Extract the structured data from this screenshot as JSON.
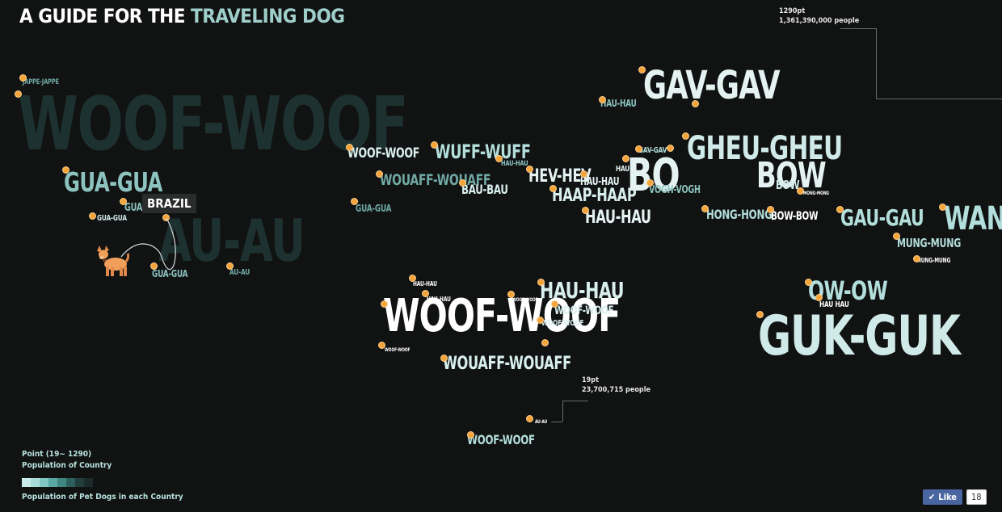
{
  "header": {
    "title_prefix": "A GUIDE FOR THE ",
    "title_accent": "TRAVELING DOG"
  },
  "colors": {
    "background": "#111212",
    "accent": "#9fcfcb",
    "dot": "#f3a53c"
  },
  "annotations": {
    "max_points": "1290pt",
    "max_population": "1,361,390,000 people",
    "min_points": "19pt",
    "min_population": "23,700,715 people"
  },
  "highlight": {
    "label": "BRAZIL"
  },
  "legend": {
    "points": "Point (19~ 1290)",
    "population": "Population of Country",
    "dogs": "Population of Pet Dogs in each Country",
    "scale_colors": [
      "#c9ecea",
      "#a9dcd8",
      "#7fc6c1",
      "#5aa8a3",
      "#3f8580",
      "#2d605c",
      "#213e3c",
      "#1a2b2a"
    ]
  },
  "facebook": {
    "like_label": "Like",
    "like_count": "18"
  },
  "words": [
    {
      "t": "WOOF-WOOF",
      "c": "#1d3230"
    },
    {
      "t": "AU-AU",
      "c": "#1d3230"
    },
    {
      "t": "JAPPE-JAPPE",
      "c": "#6fa8a4"
    },
    {
      "t": "GUA-GUA",
      "c": "#8cc3bf"
    },
    {
      "t": "GUA",
      "c": "#8cc3bf"
    },
    {
      "t": "GUA-GUA",
      "c": "#cfeae8"
    },
    {
      "t": "GUA-GUA",
      "c": "#6fa8a4"
    },
    {
      "t": "AU-AU",
      "c": "#6fa8a4"
    },
    {
      "t": "WOOF-WOOF",
      "c": "#d8efed"
    },
    {
      "t": "WUFF-WUFF",
      "c": "#b2dedb"
    },
    {
      "t": "WOUAFF-WOUAFF",
      "c": "#6fa8a4"
    },
    {
      "t": "BAU-BAU",
      "c": "#d8efed"
    },
    {
      "t": "GUA-GUA",
      "c": "#8cc3bf"
    },
    {
      "t": "HAU-HAU",
      "c": "#8cc3bf"
    },
    {
      "t": "HEV-HEV",
      "c": "#e4f3f2"
    },
    {
      "t": "HAU-HAU",
      "c": "#e4f3f2"
    },
    {
      "t": "HAAP-HAAP",
      "c": "#d8efed"
    },
    {
      "t": "HAU-HAU",
      "c": "#e4f3f2"
    },
    {
      "t": "GAV-GAV",
      "c": "#b2dedb"
    },
    {
      "t": "HAU-HAU",
      "c": "#8cc3bf"
    },
    {
      "t": "GAV-GAV",
      "c": "#e4f3f2"
    },
    {
      "t": "HAU",
      "c": "#e4f3f2"
    },
    {
      "t": "BO",
      "c": "#e4f3f2"
    },
    {
      "t": "VOGH-VOGH",
      "c": "#8cc3bf"
    },
    {
      "t": "BOW",
      "c": "#e4f3f2"
    },
    {
      "t": "BOW",
      "c": "#cfeae8"
    },
    {
      "t": "GHEU-GHEU",
      "c": "#cfeae8"
    },
    {
      "t": "MONG-MONG",
      "c": "#ffffff"
    },
    {
      "t": "HONG-HONG",
      "c": "#b2dedb"
    },
    {
      "t": "BOW-BOW",
      "c": "#ffffff"
    },
    {
      "t": "GAU-GAU",
      "c": "#b2dedb"
    },
    {
      "t": "WAN",
      "c": "#b2dedb"
    },
    {
      "t": "MUNG-MUNG",
      "c": "#b2dedb"
    },
    {
      "t": "MUNG-MUNG",
      "c": "#ffffff"
    },
    {
      "t": "OW-OW",
      "c": "#b2dedb"
    },
    {
      "t": "HAU HAU",
      "c": "#ffffff"
    },
    {
      "t": "GUK-GUK",
      "c": "#cfeae8"
    },
    {
      "t": "HAU-HAU",
      "c": "#ffffff"
    },
    {
      "t": "HAU-HAU",
      "c": "#ffffff"
    },
    {
      "t": "WOOF-WOOF",
      "c": "#ffffff"
    },
    {
      "t": "HAU-HAU",
      "c": "#d8efed"
    },
    {
      "t": "WOOF-WOOF",
      "c": "#d8efed"
    },
    {
      "t": "WOOF-WOOF",
      "c": "#d8efed"
    },
    {
      "t": "WOOF-WOOF",
      "c": "#ffffff"
    },
    {
      "t": "WOOF-WOOF",
      "c": "#ffffff"
    },
    {
      "t": "WOUAFF-WOUAFF",
      "c": "#d8efed"
    },
    {
      "t": "AU-AU",
      "c": "#ffffff"
    },
    {
      "t": "WOOF-WOOF",
      "c": "#b2dedb"
    }
  ]
}
